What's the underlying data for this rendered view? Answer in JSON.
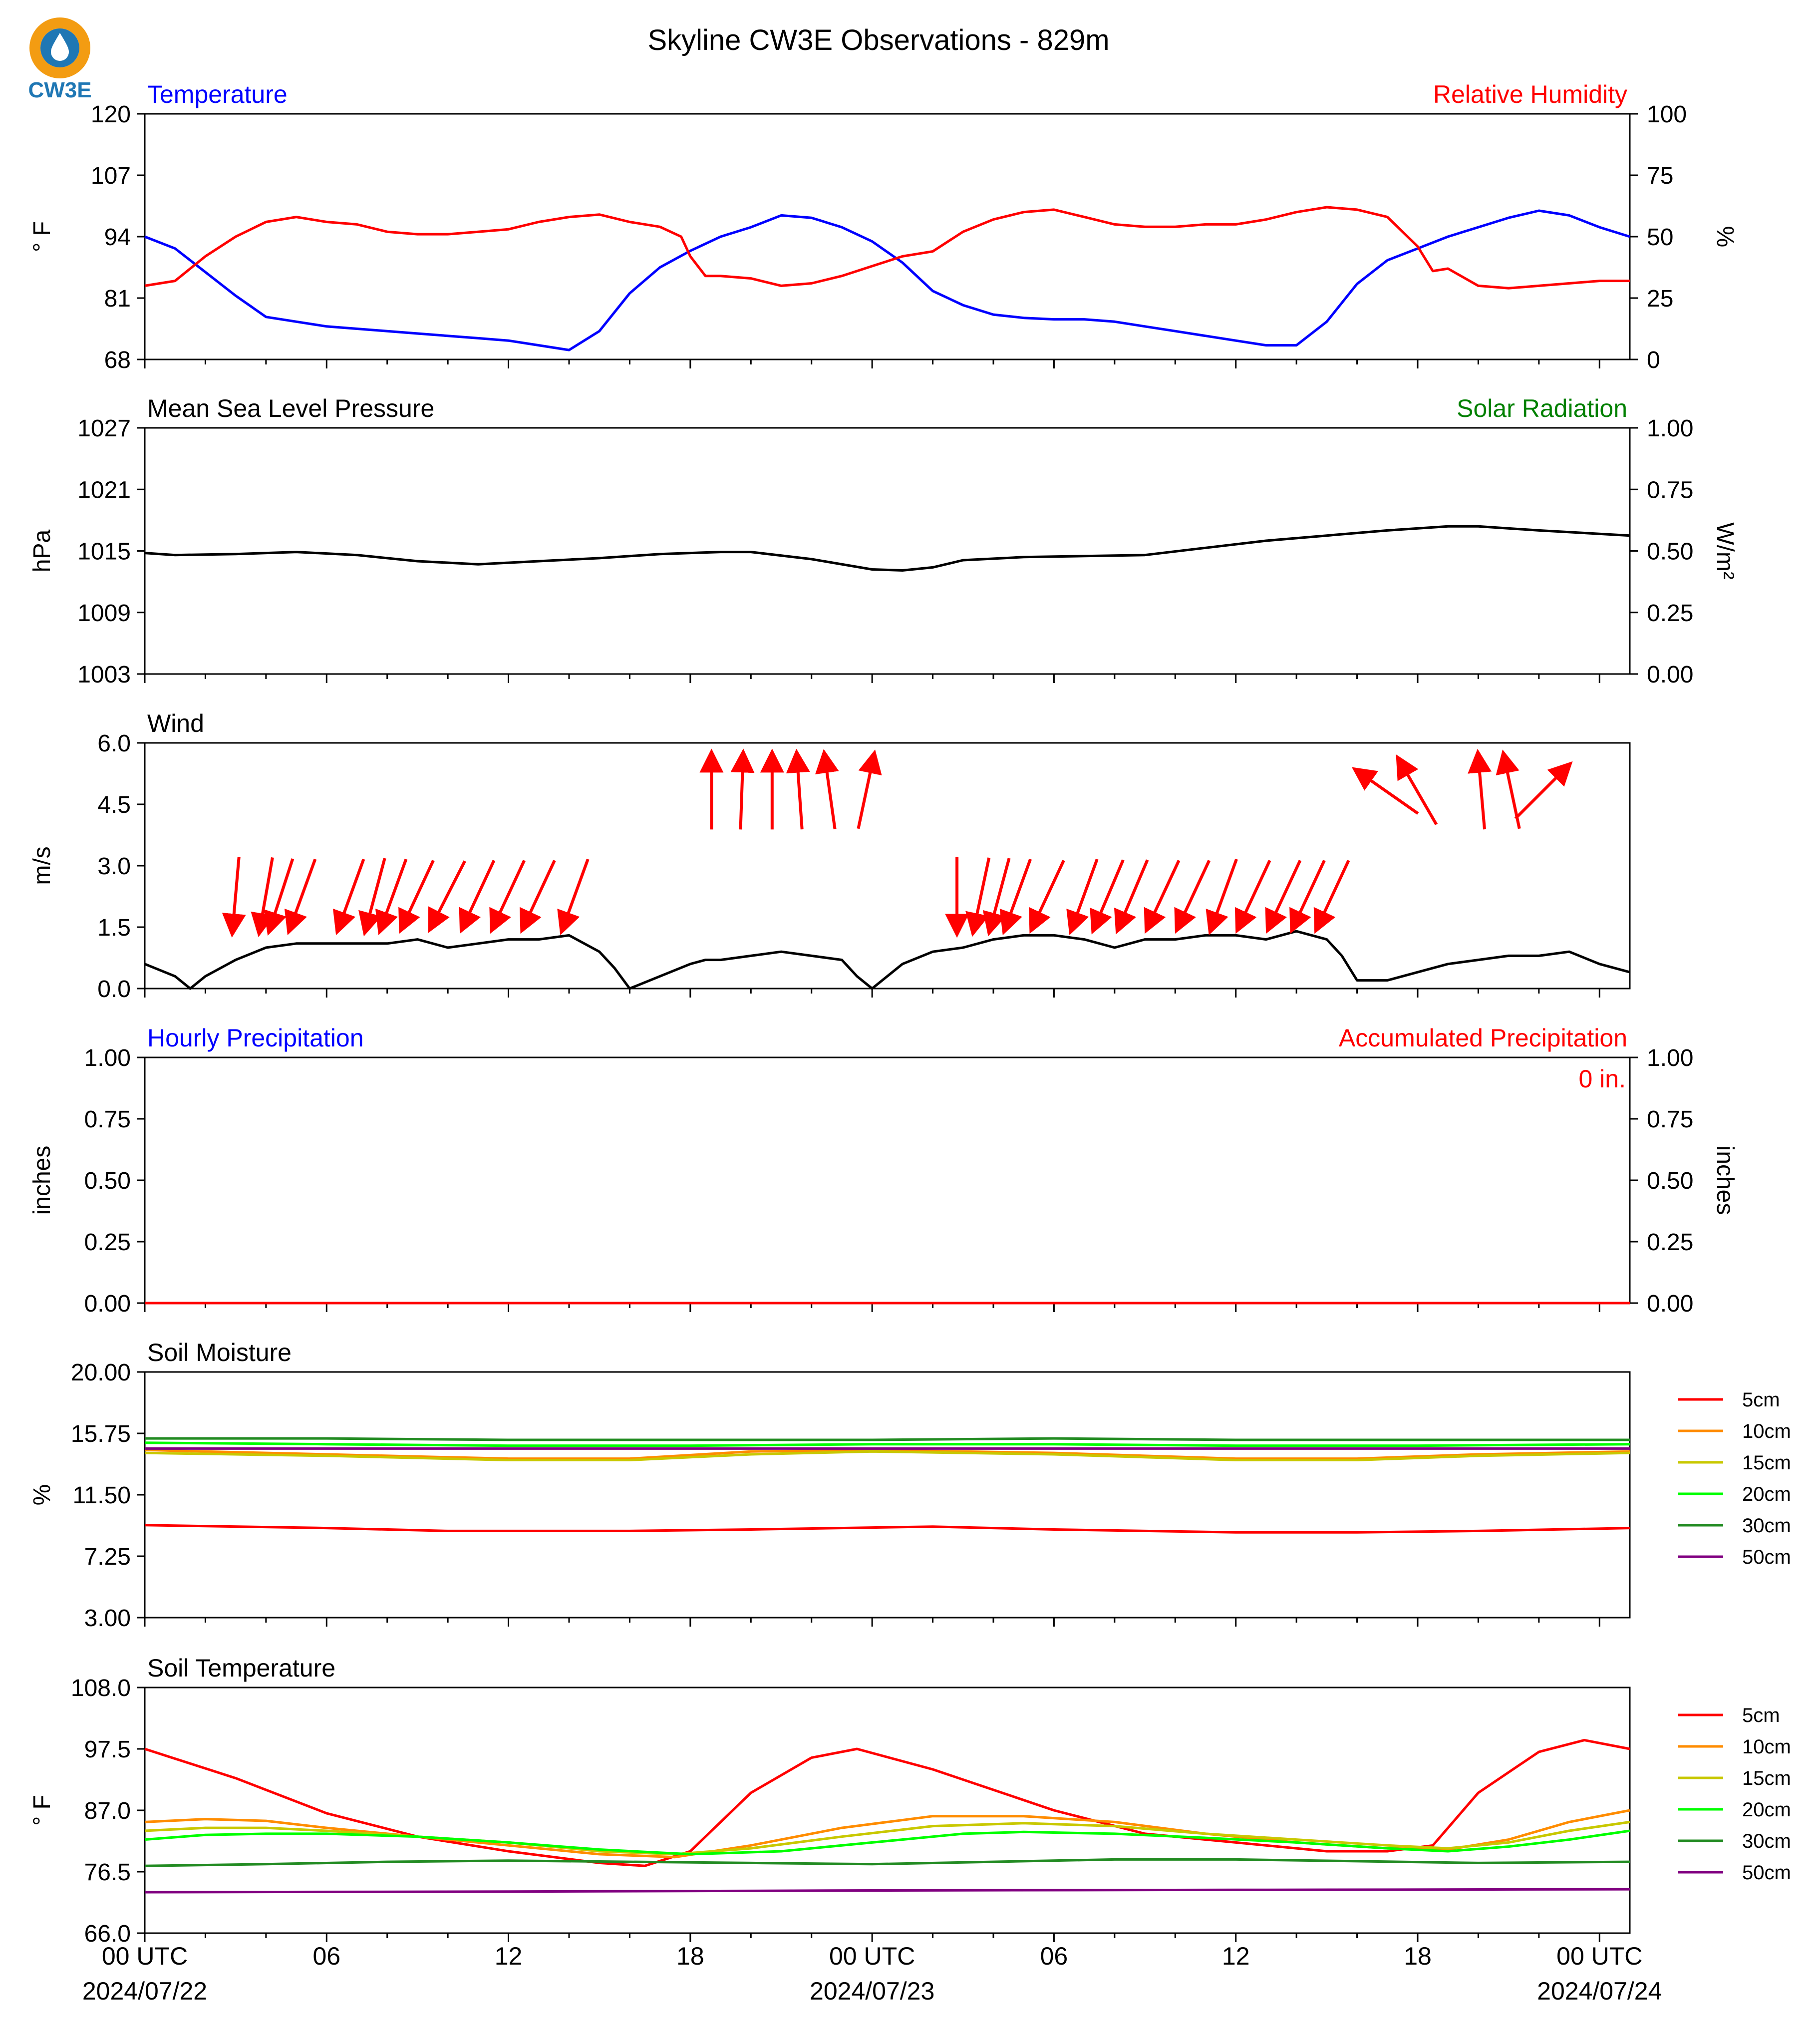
{
  "title": "Skyline CW3E Observations - 829m",
  "logo": {
    "text": "CW3E",
    "color_ring": "#f39c12",
    "color_drop": "#1f77b4"
  },
  "x_axis": {
    "ticks": [
      "00 UTC",
      "06",
      "12",
      "18",
      "00 UTC",
      "06",
      "12",
      "18",
      "00 UTC"
    ],
    "tick_hours": [
      0,
      6,
      12,
      18,
      24,
      30,
      36,
      42,
      48
    ],
    "dates": [
      "2024/07/22",
      "2024/07/23",
      "2024/07/24"
    ],
    "date_hours": [
      0,
      24,
      48
    ],
    "range_hours": [
      0,
      49
    ]
  },
  "chart_data": [
    {
      "id": "temp-rh",
      "type": "line",
      "title_left": "Temperature",
      "title_left_color": "#0000ff",
      "title_right": "Relative Humidity",
      "title_right_color": "#ff0000",
      "ylabel_left": "° F",
      "ylabel_right": "%",
      "ylim_left": [
        68,
        120
      ],
      "yticks_left": [
        "120",
        "107",
        "94",
        "81",
        "68"
      ],
      "ylim_right": [
        0,
        100
      ],
      "yticks_right": [
        "100",
        "75",
        "50",
        "25",
        "0"
      ],
      "series": [
        {
          "name": "Temperature",
          "axis": "left",
          "color": "#0000ff",
          "x": [
            0,
            1,
            2,
            3,
            4,
            5,
            6,
            7,
            8,
            9,
            10,
            11,
            12,
            13,
            14,
            15,
            16,
            17,
            18,
            19,
            20,
            21,
            22,
            23,
            24,
            25,
            26,
            27,
            28,
            29,
            30,
            31,
            32,
            33,
            34,
            35,
            36,
            37,
            38,
            39,
            40,
            41,
            42,
            43,
            44,
            45,
            46,
            47,
            48,
            49
          ],
          "y": [
            94,
            91.5,
            86.5,
            81.5,
            77,
            76,
            75,
            74.5,
            74,
            73.5,
            73,
            72.5,
            72,
            71,
            70,
            74,
            82,
            87.5,
            91,
            94,
            96,
            98.5,
            98,
            96,
            93,
            88.5,
            82.5,
            79.5,
            77.5,
            76.8,
            76.5,
            76.5,
            76,
            75,
            74,
            73,
            72,
            71,
            71,
            76,
            84,
            89,
            91.5,
            94,
            96,
            98,
            99.5,
            98.5,
            96,
            94
          ]
        },
        {
          "name": "Relative Humidity",
          "axis": "right",
          "color": "#ff0000",
          "x": [
            0,
            1,
            2,
            3,
            4,
            5,
            6,
            7,
            8,
            9,
            10,
            11,
            12,
            13,
            14,
            15,
            16,
            17,
            17.7,
            18,
            18.5,
            19,
            20,
            21,
            22,
            23,
            24,
            25,
            26,
            27,
            28,
            29,
            30,
            31,
            32,
            33,
            34,
            35,
            36,
            37,
            38,
            39,
            40,
            41,
            42,
            42.5,
            43,
            44,
            45,
            46,
            47,
            48,
            49
          ],
          "y": [
            30,
            32,
            42,
            50,
            56,
            58,
            56,
            55,
            52,
            51,
            51,
            52,
            53,
            56,
            58,
            59,
            56,
            54,
            50,
            42,
            34,
            34,
            33,
            30,
            31,
            34,
            38,
            42,
            44,
            52,
            57,
            60,
            61,
            58,
            55,
            54,
            54,
            55,
            55,
            57,
            60,
            62,
            61,
            58,
            46,
            36,
            37,
            30,
            29,
            30,
            31,
            32,
            32
          ]
        }
      ]
    },
    {
      "id": "pressure",
      "type": "line",
      "title_left": "Mean Sea Level Pressure",
      "title_left_color": "#000000",
      "title_right": "Solar Radiation",
      "title_right_color": "#008000",
      "ylabel_left": "hPa",
      "ylabel_right": "W/m²",
      "ylim_left": [
        1003,
        1027
      ],
      "yticks_left": [
        "1027",
        "1021",
        "1015",
        "1009",
        "1003"
      ],
      "ylim_right": [
        0,
        1
      ],
      "yticks_right": [
        "1.00",
        "0.75",
        "0.50",
        "0.25",
        "0.00"
      ],
      "series": [
        {
          "axis": "left",
          "color": "#000000",
          "x": [
            0,
            1,
            3,
            5,
            7,
            9,
            11,
            13,
            15,
            17,
            19,
            20,
            22,
            24,
            25,
            26,
            27,
            29,
            31,
            33,
            35,
            37,
            39,
            41,
            43,
            44,
            46,
            49
          ],
          "y": [
            1014.8,
            1014.6,
            1014.7,
            1014.9,
            1014.6,
            1014,
            1013.7,
            1014,
            1014.3,
            1014.7,
            1014.9,
            1014.9,
            1014.2,
            1013.2,
            1013.1,
            1013.4,
            1014.1,
            1014.4,
            1014.5,
            1014.6,
            1015.3,
            1016,
            1016.5,
            1017,
            1017.4,
            1017.4,
            1017,
            1016.5
          ]
        }
      ]
    },
    {
      "id": "wind",
      "type": "line",
      "title_left": "Wind",
      "title_left_color": "#000000",
      "ylabel_left": "m/s",
      "ylim_left": [
        0,
        6
      ],
      "yticks_left": [
        "6.0",
        "4.5",
        "3.0",
        "1.5",
        "0.0"
      ],
      "series": [
        {
          "name": "Wind speed",
          "axis": "left",
          "color": "#000000",
          "x": [
            0,
            1,
            1.5,
            2,
            3,
            4,
            5,
            6,
            7,
            8,
            9,
            10,
            11,
            12,
            13,
            14,
            15,
            15.5,
            16,
            17,
            18,
            18.5,
            19,
            20,
            21,
            22,
            23,
            23.5,
            24,
            25,
            26,
            27,
            28,
            29,
            30,
            31,
            32,
            33,
            34,
            35,
            36,
            37,
            38,
            39,
            39.5,
            40,
            41,
            42,
            43,
            44,
            45,
            46,
            47,
            48,
            49
          ],
          "y": [
            0.6,
            0.3,
            0.0,
            0.3,
            0.7,
            1.0,
            1.1,
            1.1,
            1.1,
            1.1,
            1.2,
            1.0,
            1.1,
            1.2,
            1.2,
            1.3,
            0.9,
            0.5,
            0.0,
            0.3,
            0.6,
            0.7,
            0.7,
            0.8,
            0.9,
            0.8,
            0.7,
            0.3,
            0.0,
            0.6,
            0.9,
            1.0,
            1.2,
            1.3,
            1.3,
            1.2,
            1.0,
            1.2,
            1.2,
            1.3,
            1.3,
            1.2,
            1.4,
            1.2,
            0.8,
            0.2,
            0.2,
            0.4,
            0.6,
            0.7,
            0.8,
            0.8,
            0.9,
            0.6,
            0.4
          ]
        }
      ],
      "arrows_hours": [
        3,
        4,
        4.5,
        5.2,
        6.8,
        7.6,
        8.2,
        9,
        10,
        11,
        12,
        13,
        14.2,
        18.7,
        19.7,
        20.7,
        21.6,
        22.6,
        23.8,
        26.8,
        27.6,
        28.2,
        28.8,
        29.8,
        31,
        31.8,
        32.6,
        33.6,
        34.6,
        35.6,
        36.6,
        37.6,
        38.4,
        39.2,
        41,
        42,
        44.1,
        45.1,
        46.1
      ],
      "arrows_dir_deg": [
        185,
        190,
        198,
        200,
        200,
        195,
        200,
        205,
        207,
        205,
        205,
        205,
        200,
        0,
        2,
        0,
        356,
        352,
        12,
        180,
        192,
        195,
        200,
        205,
        200,
        203,
        203,
        205,
        205,
        200,
        205,
        205,
        205,
        205,
        305,
        330,
        355,
        348,
        45
      ]
    },
    {
      "id": "precip",
      "type": "line",
      "title_left": "Hourly Precipitation",
      "title_left_color": "#0000ff",
      "title_right": "Accumulated Precipitation",
      "title_right_color": "#ff0000",
      "annotation": "0 in.",
      "ylabel_left": "inches",
      "ylabel_right": "inches",
      "ylim_left": [
        0,
        1
      ],
      "yticks_left": [
        "1.00",
        "0.75",
        "0.50",
        "0.25",
        "0.00"
      ],
      "ylim_right": [
        0,
        1
      ],
      "yticks_right": [
        "1.00",
        "0.75",
        "0.50",
        "0.25",
        "0.00"
      ],
      "series": [
        {
          "name": "Accumulated Precipitation",
          "axis": "left",
          "color": "#ff0000",
          "x": [
            0,
            49
          ],
          "y": [
            0,
            0
          ]
        }
      ]
    },
    {
      "id": "soil-moisture",
      "type": "line",
      "title_left": "Soil Moisture",
      "title_left_color": "#000000",
      "ylabel_left": "%",
      "ylim_left": [
        3,
        20
      ],
      "yticks_left": [
        "20.00",
        "15.75",
        "11.50",
        "7.25",
        "3.00"
      ],
      "legend": [
        "5cm",
        "10cm",
        "15cm",
        "20cm",
        "30cm",
        "50cm"
      ],
      "series": [
        {
          "name": "5cm",
          "axis": "left",
          "color": "#ff0000",
          "x": [
            0,
            6,
            10,
            16,
            20,
            26,
            30,
            36,
            40,
            44,
            49
          ],
          "y": [
            9.4,
            9.2,
            9.0,
            9.0,
            9.1,
            9.3,
            9.1,
            8.9,
            8.9,
            9.0,
            9.2
          ]
        },
        {
          "name": "10cm",
          "axis": "left",
          "color": "#ff8c00",
          "x": [
            0,
            6,
            12,
            16,
            20,
            24,
            30,
            36,
            40,
            44,
            49
          ],
          "y": [
            14.6,
            14.3,
            14.0,
            14.0,
            14.5,
            14.6,
            14.4,
            14.0,
            14.0,
            14.3,
            14.5
          ]
        },
        {
          "name": "15cm",
          "axis": "left",
          "color": "#c8c800",
          "x": [
            0,
            6,
            12,
            16,
            20,
            24,
            30,
            36,
            40,
            44,
            49
          ],
          "y": [
            14.4,
            14.2,
            13.9,
            13.9,
            14.3,
            14.5,
            14.3,
            13.9,
            13.9,
            14.2,
            14.4
          ]
        },
        {
          "name": "20cm",
          "axis": "left",
          "color": "#00ff00",
          "x": [
            0,
            6,
            12,
            18,
            24,
            30,
            36,
            42,
            49
          ],
          "y": [
            15.1,
            15.0,
            14.9,
            14.9,
            15.0,
            15.0,
            14.9,
            14.9,
            15.0
          ]
        },
        {
          "name": "30cm",
          "axis": "left",
          "color": "#228b22",
          "x": [
            0,
            6,
            12,
            18,
            24,
            30,
            36,
            42,
            49
          ],
          "y": [
            15.4,
            15.4,
            15.3,
            15.3,
            15.3,
            15.4,
            15.3,
            15.3,
            15.3
          ]
        },
        {
          "name": "50cm",
          "axis": "left",
          "color": "#800080",
          "x": [
            0,
            12,
            24,
            36,
            49
          ],
          "y": [
            14.7,
            14.7,
            14.7,
            14.7,
            14.7
          ]
        }
      ]
    },
    {
      "id": "soil-temp",
      "type": "line",
      "title_left": "Soil Temperature",
      "title_left_color": "#000000",
      "ylabel_left": "° F",
      "ylim_left": [
        66,
        108
      ],
      "yticks_left": [
        "108.0",
        "97.5",
        "87.0",
        "76.5",
        "66.0"
      ],
      "legend": [
        "5cm",
        "10cm",
        "15cm",
        "20cm",
        "30cm",
        "50cm"
      ],
      "series": [
        {
          "name": "5cm",
          "axis": "left",
          "color": "#ff0000",
          "x": [
            0,
            3,
            6,
            9,
            12,
            15,
            16.5,
            18,
            20,
            22,
            23.5,
            26,
            30,
            33,
            36,
            39,
            41,
            42.5,
            44,
            46,
            47.5,
            49
          ],
          "y": [
            97.5,
            92.5,
            86.5,
            82.5,
            80,
            78,
            77.5,
            80,
            90,
            96,
            97.5,
            94,
            87,
            83,
            81.5,
            80,
            80,
            81,
            90,
            97,
            99,
            97.5
          ]
        },
        {
          "name": "10cm",
          "axis": "left",
          "color": "#ff8c00",
          "x": [
            0,
            2,
            4,
            6,
            9,
            12,
            15,
            17.5,
            20,
            23,
            26,
            29,
            32,
            35,
            38,
            41,
            43,
            45,
            47,
            49
          ],
          "y": [
            85,
            85.5,
            85.2,
            84,
            82.5,
            81,
            79.5,
            79,
            81,
            84,
            86,
            86,
            85,
            83,
            81.5,
            80.5,
            80.3,
            82,
            85,
            87
          ]
        },
        {
          "name": "15cm",
          "axis": "left",
          "color": "#c8c800",
          "x": [
            0,
            2,
            4,
            6,
            9,
            12,
            15,
            17.5,
            20,
            23,
            26,
            29,
            32,
            35,
            38,
            41,
            43,
            45,
            47,
            49
          ],
          "y": [
            83.5,
            84,
            84,
            83.5,
            82.5,
            81.5,
            80,
            79.5,
            80.5,
            82.5,
            84.3,
            84.8,
            84.3,
            83,
            82,
            81,
            80.5,
            81.5,
            83.5,
            85
          ]
        },
        {
          "name": "20cm",
          "axis": "left",
          "color": "#00ff00",
          "x": [
            0,
            2,
            4,
            6,
            9,
            12,
            15,
            18,
            21,
            24,
            27,
            29,
            32,
            35,
            38,
            41,
            43,
            45,
            47,
            49
          ],
          "y": [
            82,
            82.8,
            83,
            83,
            82.5,
            81.5,
            80.3,
            79.5,
            80,
            81.5,
            83,
            83.3,
            83,
            82.3,
            81.5,
            80.5,
            80,
            80.8,
            82,
            83.5
          ]
        },
        {
          "name": "30cm",
          "axis": "left",
          "color": "#228b22",
          "x": [
            0,
            4,
            8,
            12,
            16,
            20,
            24,
            28,
            32,
            36,
            40,
            44,
            49
          ],
          "y": [
            77.5,
            77.8,
            78.2,
            78.4,
            78.2,
            78,
            77.8,
            78.2,
            78.6,
            78.6,
            78.3,
            78,
            78.2
          ]
        },
        {
          "name": "50cm",
          "axis": "left",
          "color": "#800080",
          "x": [
            0,
            12,
            24,
            36,
            49
          ],
          "y": [
            73,
            73.1,
            73.3,
            73.4,
            73.5
          ]
        }
      ]
    }
  ]
}
